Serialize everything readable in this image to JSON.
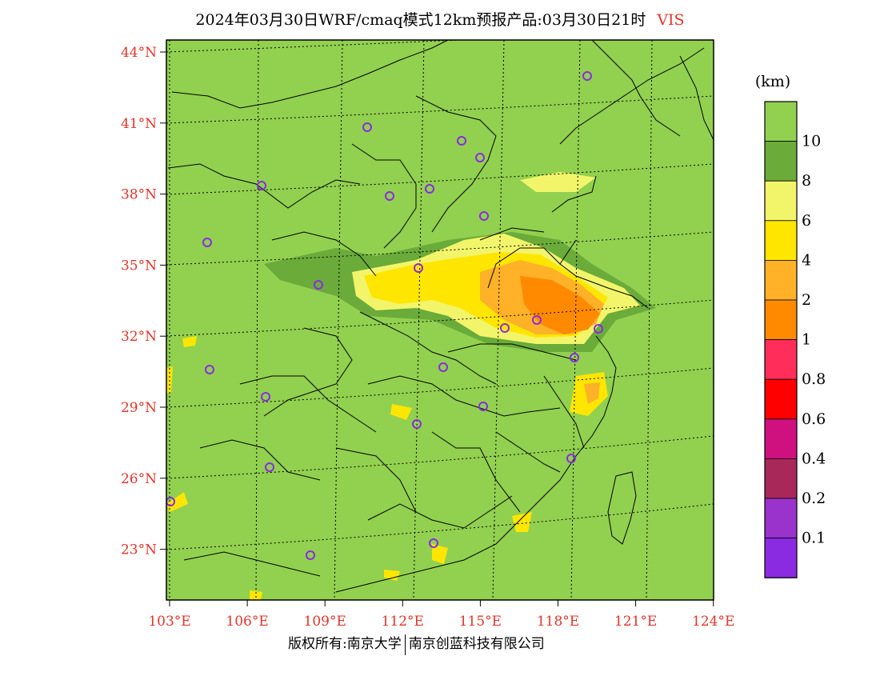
{
  "title": {
    "main": "2024年03月30日WRF/cmaq模式12km预报产品:03月30日21时",
    "variable": "VIS",
    "variable_color": "#e8332a"
  },
  "footer": {
    "left": "版权所有:南京大学",
    "right": "南京创蓝科技有限公司"
  },
  "map": {
    "lat_labels": [
      "44°N",
      "41°N",
      "38°N",
      "35°N",
      "32°N",
      "29°N",
      "26°N",
      "23°N"
    ],
    "lon_labels": [
      "103°E",
      "106°E",
      "109°E",
      "112°E",
      "115°E",
      "118°E",
      "121°E",
      "124°E"
    ],
    "label_color": "#e8332a",
    "base_color": "#92d050"
  },
  "legend": {
    "unit": "(km)",
    "labels": [
      "10",
      "8",
      "6",
      "4",
      "2",
      "1",
      "0.8",
      "0.6",
      "0.4",
      "0.2",
      "0.1"
    ],
    "colors": [
      "#92d050",
      "#6aab3a",
      "#f2f56a",
      "#ffe600",
      "#ffb128",
      "#ff8a00",
      "#ff2d5a",
      "#ff0000",
      "#cf1180",
      "#a8285a",
      "#9933cc",
      "#8a2be2"
    ]
  }
}
